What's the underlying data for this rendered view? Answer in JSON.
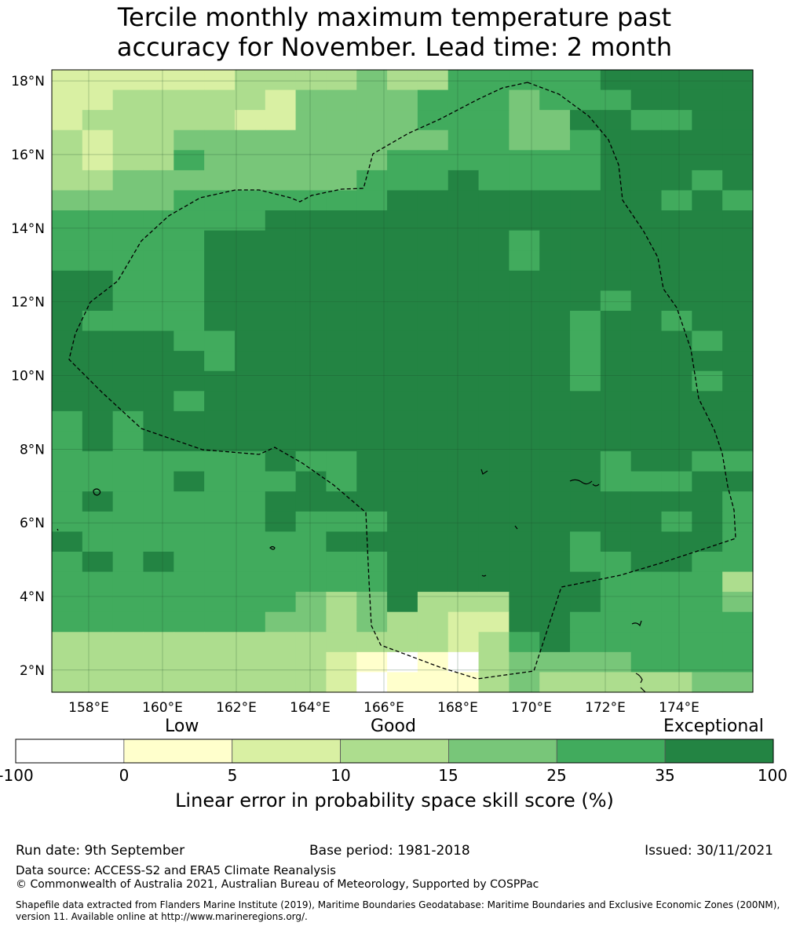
{
  "title": {
    "line1": "Tercile monthly maximum temperature past",
    "line2": "accuracy for November. Lead time: 2 month"
  },
  "map": {
    "lat_labels": [
      "18°N",
      "16°N",
      "14°N",
      "12°N",
      "10°N",
      "8°N",
      "6°N",
      "4°N",
      "2°N"
    ],
    "lon_labels": [
      "158°E",
      "160°E",
      "162°E",
      "164°E",
      "166°E",
      "168°E",
      "170°E",
      "172°E",
      "174°E"
    ],
    "lat_range": [
      1.4,
      18.3
    ],
    "lon_range": [
      157.0,
      176.0
    ],
    "grid": true,
    "boundary_style": "dashed black line (EEZ)"
  },
  "colorbar": {
    "category_labels": [
      "Low",
      "Good",
      "Exceptional"
    ],
    "ticks": [
      "-100",
      "0",
      "5",
      "10",
      "15",
      "25",
      "35",
      "100"
    ],
    "colors": [
      "#ffffff",
      "#ffffcc",
      "#d9f0a3",
      "#addd8e",
      "#78c679",
      "#41ab5d",
      "#238443"
    ],
    "axis_label": "Linear error in probability space skill score (%)"
  },
  "footer": {
    "run_date": "Run date: 9th September",
    "base_period": "Base period: 1981-2018",
    "issued": "Issued: 30/11/2021",
    "data_source": "Data source: ACCESS-S2 and ERA5 Climate Reanalysis",
    "copyright": "© Commonwealth of Australia 2021, Australian Bureau of Meteorology, Supported by COSPPac",
    "shapefile": "Shapefile data extracted from Flanders Marine Institute (2019), Maritime Boundaries Geodatabase: Maritime Boundaries and Exclusive Economic Zones (200NM), version 11. Available online at http://www.marineregions.org/."
  }
}
